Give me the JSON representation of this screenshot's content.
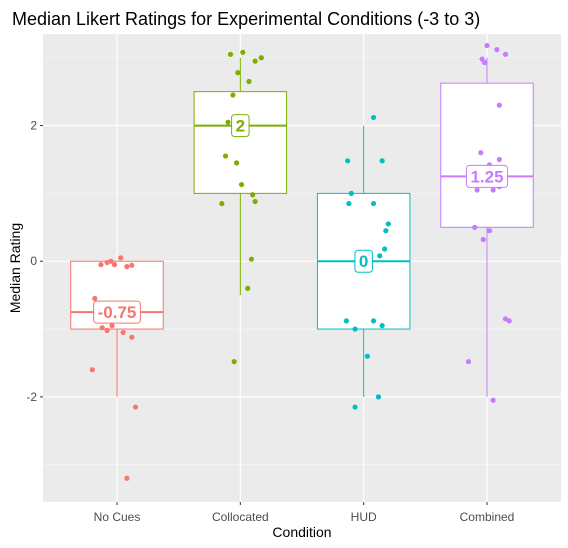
{
  "chart_data": {
    "type": "box",
    "title": "Median Likert Ratings for Experimental Conditions (-3 to 3)",
    "xlabel": "Condition",
    "ylabel": "Median Rating",
    "ylim": [
      -3.55,
      3.35
    ],
    "yticks": [
      -2,
      0,
      2
    ],
    "grid": true,
    "legend": "none",
    "categories": [
      "No Cues",
      "Collocated",
      "HUD",
      "Combined"
    ],
    "colors": [
      "#F8766D",
      "#7CAE00",
      "#00BFC4",
      "#C77CFF"
    ],
    "boxes": [
      {
        "q1": -1.0,
        "median": -0.75,
        "q3": 0.0,
        "whisker_low": -2.0,
        "whisker_high": 0.0,
        "label": "-0.75"
      },
      {
        "q1": 1.0,
        "median": 2.0,
        "q3": 2.5,
        "whisker_low": -0.5,
        "whisker_high": 3.0,
        "label": "2"
      },
      {
        "q1": -1.0,
        "median": 0.0,
        "q3": 1.0,
        "whisker_low": -2.0,
        "whisker_high": 2.0,
        "label": "0"
      },
      {
        "q1": 0.5,
        "median": 1.25,
        "q3": 2.625,
        "whisker_low": -2.0,
        "whisker_high": 3.0,
        "label": "1.25"
      }
    ],
    "points": [
      [
        {
          "dx": -0.13,
          "y": -0.05
        },
        {
          "dx": -0.08,
          "y": -0.02
        },
        {
          "dx": -0.05,
          "y": 0.0
        },
        {
          "dx": -0.02,
          "y": -0.05
        },
        {
          "dx": 0.03,
          "y": 0.05
        },
        {
          "dx": 0.08,
          "y": -0.08
        },
        {
          "dx": 0.12,
          "y": -0.06
        },
        {
          "dx": -0.18,
          "y": -0.55
        },
        {
          "dx": -0.12,
          "y": -0.98
        },
        {
          "dx": -0.08,
          "y": -1.02
        },
        {
          "dx": -0.04,
          "y": -0.95
        },
        {
          "dx": 0.05,
          "y": -1.05
        },
        {
          "dx": 0.12,
          "y": -1.12
        },
        {
          "dx": -0.2,
          "y": -1.6
        },
        {
          "dx": 0.15,
          "y": -2.15
        },
        {
          "dx": 0.08,
          "y": -3.2
        }
      ],
      [
        {
          "dx": -0.08,
          "y": 3.05
        },
        {
          "dx": 0.02,
          "y": 3.08
        },
        {
          "dx": 0.17,
          "y": 3.0
        },
        {
          "dx": 0.12,
          "y": 2.95
        },
        {
          "dx": -0.02,
          "y": 2.78
        },
        {
          "dx": 0.07,
          "y": 2.65
        },
        {
          "dx": -0.06,
          "y": 2.45
        },
        {
          "dx": -0.1,
          "y": 2.05
        },
        {
          "dx": -0.12,
          "y": 1.55
        },
        {
          "dx": -0.03,
          "y": 1.45
        },
        {
          "dx": 0.01,
          "y": 1.13
        },
        {
          "dx": 0.1,
          "y": 0.98
        },
        {
          "dx": 0.12,
          "y": 0.88
        },
        {
          "dx": -0.15,
          "y": 0.85
        },
        {
          "dx": 0.09,
          "y": 0.03
        },
        {
          "dx": 0.06,
          "y": -0.4
        },
        {
          "dx": -0.05,
          "y": -1.48
        }
      ],
      [
        {
          "dx": 0.08,
          "y": 2.12
        },
        {
          "dx": 0.15,
          "y": 1.48
        },
        {
          "dx": -0.13,
          "y": 1.48
        },
        {
          "dx": -0.1,
          "y": 1.0
        },
        {
          "dx": -0.12,
          "y": 0.85
        },
        {
          "dx": 0.08,
          "y": 0.85
        },
        {
          "dx": 0.2,
          "y": 0.55
        },
        {
          "dx": 0.18,
          "y": 0.45
        },
        {
          "dx": 0.17,
          "y": 0.18
        },
        {
          "dx": 0.13,
          "y": 0.08
        },
        {
          "dx": -0.14,
          "y": -0.88
        },
        {
          "dx": 0.08,
          "y": -0.88
        },
        {
          "dx": 0.15,
          "y": -0.95
        },
        {
          "dx": -0.07,
          "y": -1.0
        },
        {
          "dx": 0.03,
          "y": -1.4
        },
        {
          "dx": 0.12,
          "y": -2.0
        },
        {
          "dx": -0.07,
          "y": -2.15
        }
      ],
      [
        {
          "dx": 0.0,
          "y": 3.18
        },
        {
          "dx": 0.08,
          "y": 3.12
        },
        {
          "dx": 0.15,
          "y": 3.05
        },
        {
          "dx": -0.04,
          "y": 2.98
        },
        {
          "dx": -0.02,
          "y": 2.93
        },
        {
          "dx": 0.1,
          "y": 2.3
        },
        {
          "dx": -0.05,
          "y": 1.6
        },
        {
          "dx": 0.02,
          "y": 1.42
        },
        {
          "dx": 0.1,
          "y": 1.5
        },
        {
          "dx": -0.06,
          "y": 1.25
        },
        {
          "dx": 0.1,
          "y": 1.1
        },
        {
          "dx": -0.08,
          "y": 1.05
        },
        {
          "dx": 0.05,
          "y": 1.05
        },
        {
          "dx": -0.1,
          "y": 0.5
        },
        {
          "dx": 0.02,
          "y": 0.45
        },
        {
          "dx": -0.03,
          "y": 0.32
        },
        {
          "dx": 0.15,
          "y": -0.85
        },
        {
          "dx": 0.18,
          "y": -0.88
        },
        {
          "dx": -0.15,
          "y": -1.48
        },
        {
          "dx": 0.05,
          "y": -2.05
        }
      ]
    ]
  }
}
